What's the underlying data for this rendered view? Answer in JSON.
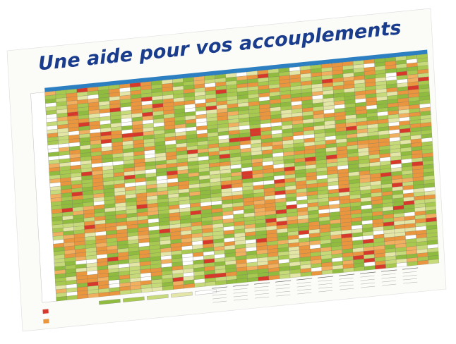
{
  "title": "Une aide pour vos accouplements"
}
